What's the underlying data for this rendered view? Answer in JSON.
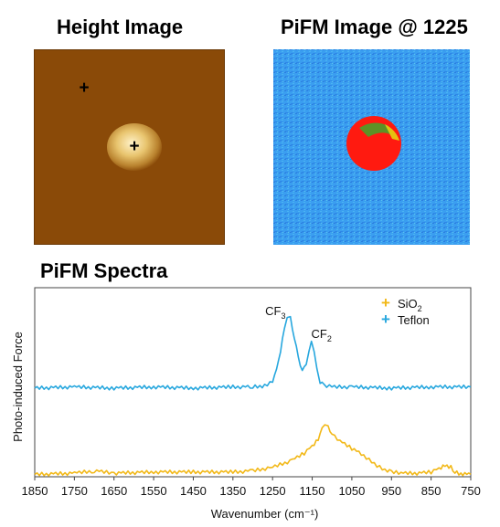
{
  "titles": {
    "height_image": "Height Image",
    "pifm_image": "PiFM Image @ 1225",
    "spectra": "PiFM Spectra"
  },
  "colors": {
    "sio2": "#f2b817",
    "teflon": "#27a7de",
    "height_background": "#8a4a08",
    "pifm_background": "#3a9ef0",
    "pifm_particle": "#ff1a10"
  },
  "markers": {
    "sio2_symbol": "+",
    "teflon_symbol": "+"
  },
  "chart_data": {
    "type": "line",
    "xlabel": "Wavenumber (cm⁻¹)",
    "ylabel": "Photo-induced Force",
    "x_reversed": true,
    "xlim": [
      1850,
      750
    ],
    "x_ticks": [
      1850,
      1750,
      1650,
      1550,
      1450,
      1350,
      1250,
      1150,
      1050,
      950,
      850,
      750
    ],
    "grid": false,
    "legend_position": "top-right",
    "annotations": [
      {
        "base": "CF",
        "sub": "3",
        "x": 1215
      },
      {
        "base": "CF",
        "sub": "2",
        "x": 1145
      }
    ],
    "series": [
      {
        "name_base": "SiO",
        "name_sub": "2",
        "color": "#f2b817",
        "x": [
          1850,
          1750,
          1700,
          1650,
          1550,
          1450,
          1350,
          1300,
          1250,
          1200,
          1170,
          1150,
          1135,
          1125,
          1118,
          1110,
          1100,
          1080,
          1050,
          1020,
          1000,
          980,
          960,
          950,
          920,
          880,
          850,
          830,
          815,
          800,
          790,
          775,
          760,
          750
        ],
        "y": [
          0.02,
          0.03,
          0.05,
          0.03,
          0.04,
          0.04,
          0.04,
          0.05,
          0.08,
          0.14,
          0.2,
          0.26,
          0.32,
          0.4,
          0.45,
          0.42,
          0.36,
          0.3,
          0.24,
          0.18,
          0.13,
          0.08,
          0.05,
          0.04,
          0.03,
          0.03,
          0.04,
          0.07,
          0.1,
          0.08,
          0.04,
          0.02,
          0.02,
          0.02
        ]
      },
      {
        "name": "Teflon",
        "color": "#27a7de",
        "x": [
          1850,
          1750,
          1650,
          1550,
          1450,
          1350,
          1300,
          1270,
          1250,
          1240,
          1230,
          1220,
          1213,
          1205,
          1195,
          1185,
          1175,
          1165,
          1158,
          1152,
          1145,
          1138,
          1130,
          1120,
          1100,
          1050,
          950,
          850,
          750
        ],
        "y": [
          0.75,
          0.76,
          0.75,
          0.76,
          0.75,
          0.76,
          0.76,
          0.77,
          0.8,
          0.9,
          1.07,
          1.25,
          1.36,
          1.34,
          1.18,
          1.0,
          0.9,
          0.94,
          1.08,
          1.14,
          1.07,
          0.9,
          0.8,
          0.77,
          0.76,
          0.76,
          0.75,
          0.76,
          0.76
        ]
      }
    ],
    "ylim": [
      0,
      1.6
    ]
  }
}
